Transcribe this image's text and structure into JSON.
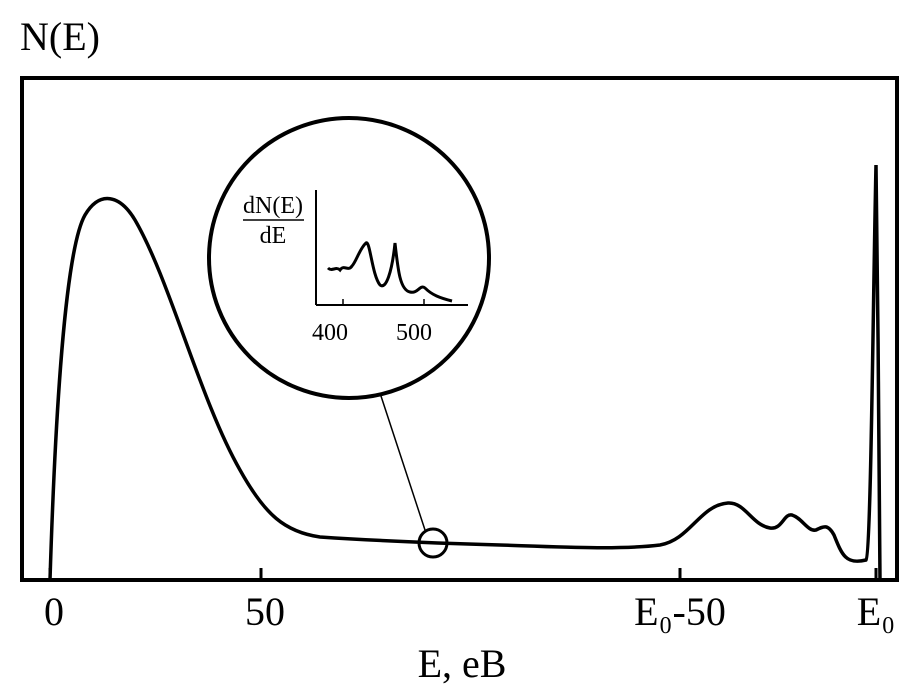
{
  "y_axis_label": "N(E)",
  "x_axis_label": "E, eB",
  "x_tick_labels": [
    "0",
    "50",
    "E₀-50",
    "E₀"
  ],
  "inset": {
    "y_axis_label_numerator": "dN(E)",
    "y_axis_label_denominator": "dE",
    "x_tick_labels": [
      "400",
      "500"
    ]
  }
}
